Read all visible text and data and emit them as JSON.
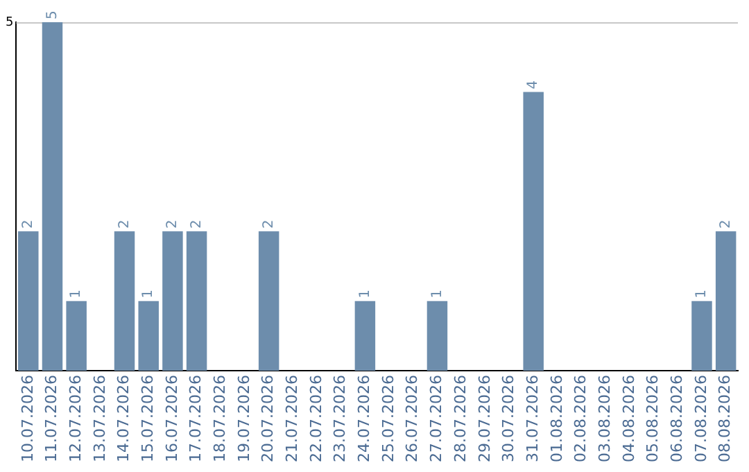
{
  "chart_data": {
    "type": "bar",
    "categories": [
      "10.07.2026",
      "11.07.2026",
      "12.07.2026",
      "13.07.2026",
      "14.07.2026",
      "15.07.2026",
      "16.07.2026",
      "17.07.2026",
      "18.07.2026",
      "19.07.2026",
      "20.07.2026",
      "21.07.2026",
      "22.07.2026",
      "23.07.2026",
      "24.07.2026",
      "25.07.2026",
      "26.07.2026",
      "27.07.2026",
      "28.07.2026",
      "29.07.2026",
      "30.07.2026",
      "31.07.2026",
      "01.08.2026",
      "02.08.2026",
      "03.08.2026",
      "04.08.2026",
      "05.08.2026",
      "06.08.2026",
      "07.08.2026",
      "08.08.2026"
    ],
    "values": [
      2,
      5,
      1,
      0,
      2,
      1,
      2,
      2,
      0,
      0,
      2,
      0,
      0,
      0,
      1,
      0,
      0,
      1,
      0,
      0,
      0,
      4,
      0,
      0,
      0,
      0,
      0,
      0,
      1,
      2
    ],
    "value_labels": [
      "2",
      "5",
      "1",
      null,
      "2",
      "1",
      "2",
      "2",
      null,
      null,
      "2",
      null,
      null,
      null,
      "1",
      null,
      null,
      "1",
      null,
      null,
      null,
      "4",
      null,
      null,
      null,
      null,
      null,
      null,
      "1",
      "2"
    ],
    "color": "#6d8dac",
    "ylim": [
      0,
      5
    ],
    "yticks": [
      5
    ],
    "legend": false
  }
}
